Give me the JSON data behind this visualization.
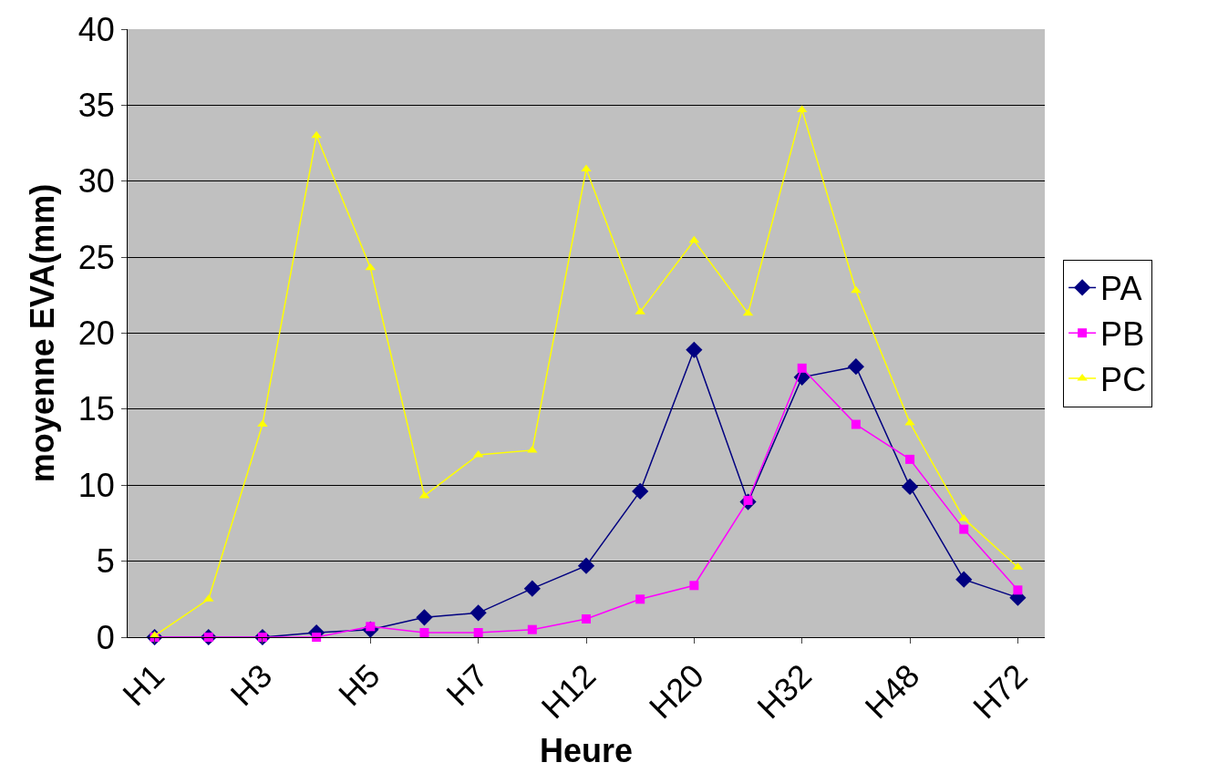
{
  "chart_data": {
    "type": "line",
    "xlabel": "Heure",
    "ylabel": "moyenne EVA(mm)",
    "categories": [
      "H1",
      null,
      "H3",
      null,
      "H5",
      null,
      "H7",
      null,
      "H12",
      null,
      "H20",
      null,
      "H32",
      null,
      "H48",
      null,
      "H72"
    ],
    "series": [
      {
        "name": "PA",
        "color": "#000080",
        "marker": "diamond",
        "values": [
          0,
          0,
          0,
          0.3,
          0.5,
          1.3,
          1.6,
          3.2,
          4.7,
          9.6,
          18.9,
          8.9,
          17.1,
          17.8,
          9.9,
          3.8,
          2.6
        ]
      },
      {
        "name": "PB",
        "color": "#ff00ff",
        "marker": "square",
        "values": [
          0,
          0,
          0,
          0,
          0.7,
          0.3,
          0.3,
          0.5,
          1.2,
          2.5,
          3.4,
          9.0,
          17.7,
          14.0,
          11.7,
          7.1,
          3.1
        ]
      },
      {
        "name": "PC",
        "color": "#ffff00",
        "marker": "triangle",
        "values": [
          0.1,
          2.5,
          14.0,
          33.0,
          24.3,
          9.3,
          12.0,
          12.3,
          30.8,
          21.4,
          26.1,
          21.3,
          34.7,
          22.8,
          14.1,
          7.8,
          4.6
        ]
      }
    ],
    "ylim": [
      0,
      40
    ],
    "yticks": [
      0,
      5,
      10,
      15,
      20,
      25,
      30,
      35,
      40
    ],
    "grid": "y",
    "legend": "right"
  }
}
